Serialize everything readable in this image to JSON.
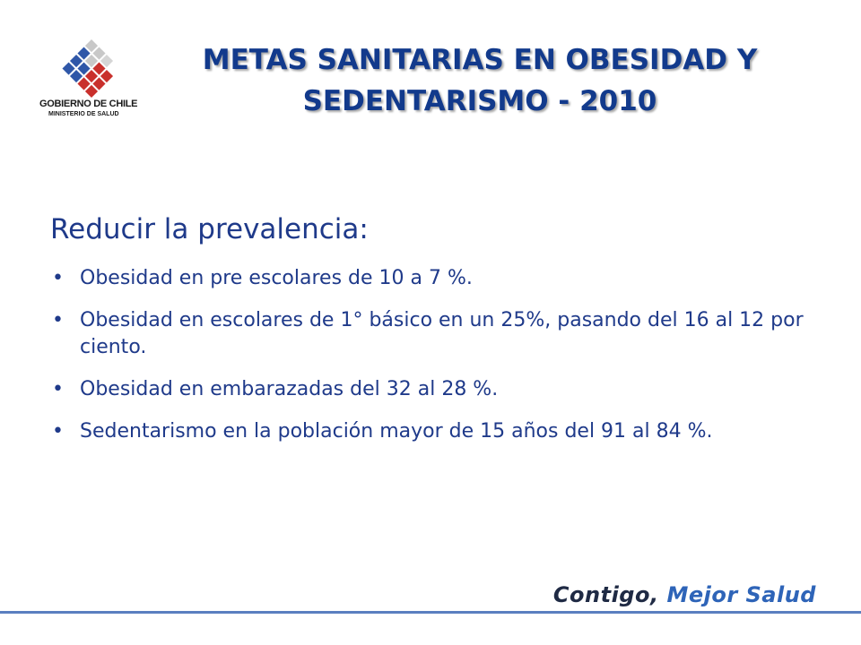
{
  "logo": {
    "name": "GOBIERNO DE CHILE",
    "subtitle": "MINISTERIO DE SALUD",
    "colors": {
      "blue": "#2f57a8",
      "red": "#c9302c",
      "grey": "#c8c8c8"
    }
  },
  "title": {
    "line1": "METAS SANITARIAS EN OBESIDAD Y",
    "line2": "SEDENTARISMO - 2010",
    "color": "#123a8c"
  },
  "body": {
    "heading": "Reducir la prevalencia:",
    "bullets": [
      "Obesidad en pre escolares de 10 a 7 %.",
      "Obesidad en escolares de 1° básico en un 25%, pasando del 16 al 12 por ciento.",
      "Obesidad en embarazadas del 32 al 28 %.",
      "Sedentarismo en la población mayor de 15 años del 91 al 84 %."
    ],
    "bullet_symbol": "•",
    "color": "#1f3a8a"
  },
  "footer": {
    "slogan_part1": "Contigo,",
    "slogan_part2": " Mejor Salud",
    "line_color": "#5a7fc0"
  }
}
